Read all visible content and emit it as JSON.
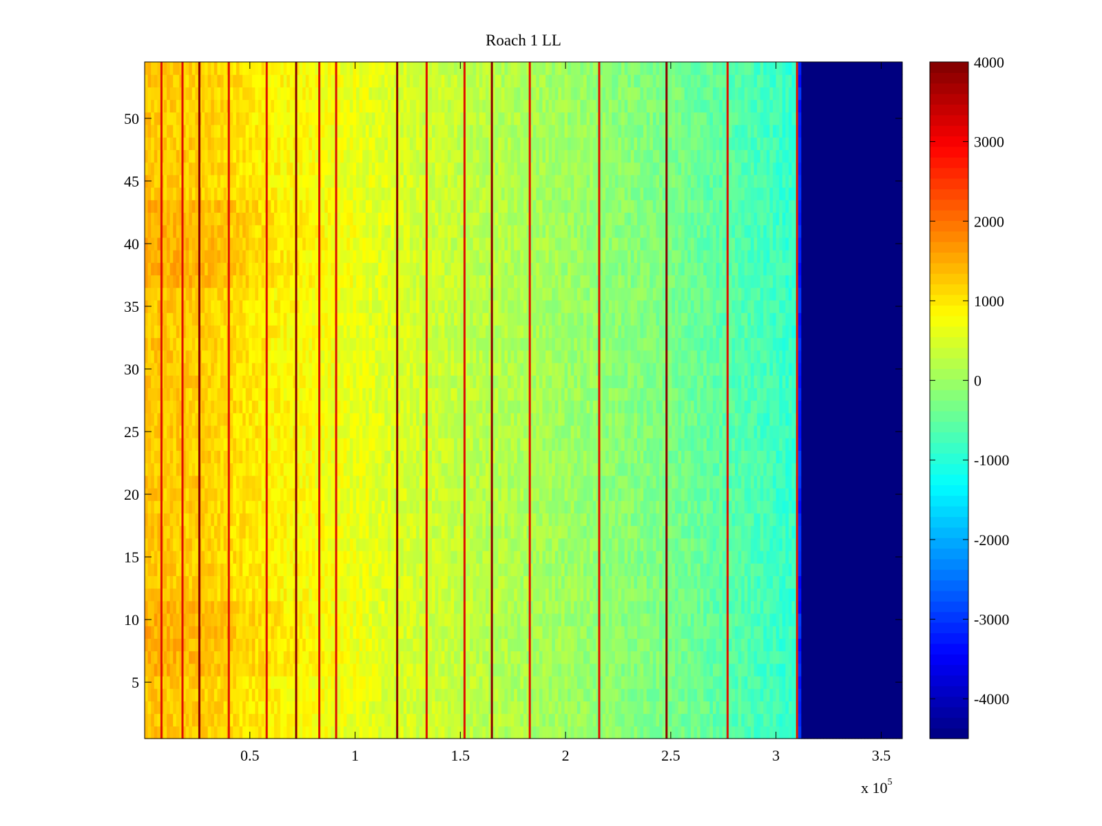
{
  "chart_data": {
    "type": "heatmap",
    "title": "Roach 1 LL",
    "xlabel": "",
    "ylabel": "",
    "x_exponent_label": "x 10",
    "x_exponent_power": "5",
    "xlim": [
      0,
      3.6
    ],
    "ylim": [
      0.5,
      54.5
    ],
    "x_ticks": [
      0.5,
      1,
      1.5,
      2,
      2.5,
      3,
      3.5
    ],
    "x_tick_labels": [
      "0.5",
      "1",
      "1.5",
      "2",
      "2.5",
      "3",
      "3.5"
    ],
    "y_ticks": [
      5,
      10,
      15,
      20,
      25,
      30,
      35,
      40,
      45,
      50
    ],
    "y_tick_labels": [
      "5",
      "10",
      "15",
      "20",
      "25",
      "30",
      "35",
      "40",
      "45",
      "50"
    ],
    "colormap": "jet",
    "clim": [
      -4500,
      4000
    ],
    "colorbar_ticks": [
      4000,
      3000,
      2000,
      1000,
      0,
      -1000,
      -2000,
      -3000,
      -4000
    ],
    "colorbar_tick_labels": [
      "4000",
      "3000",
      "2000",
      "1000",
      "0",
      "-1000",
      "-2000",
      "-3000",
      "-4000"
    ],
    "value_trend": {
      "x_points": [
        0,
        0.3,
        0.6,
        1.0,
        1.5,
        2.0,
        2.5,
        3.0,
        3.1,
        3.12,
        3.6
      ],
      "values": [
        1300,
        1200,
        900,
        650,
        300,
        0,
        -300,
        -800,
        -900,
        -4500,
        -4500
      ]
    },
    "spike_lines_x": [
      0.08,
      0.18,
      0.26,
      0.4,
      0.58,
      0.72,
      0.83,
      0.91,
      1.2,
      1.34,
      1.52,
      1.65,
      1.83,
      2.16,
      2.48,
      2.77,
      3.1
    ],
    "colors": {
      "background": "#ffffff",
      "axis": "#000000",
      "empty_region": "#00008f"
    }
  }
}
